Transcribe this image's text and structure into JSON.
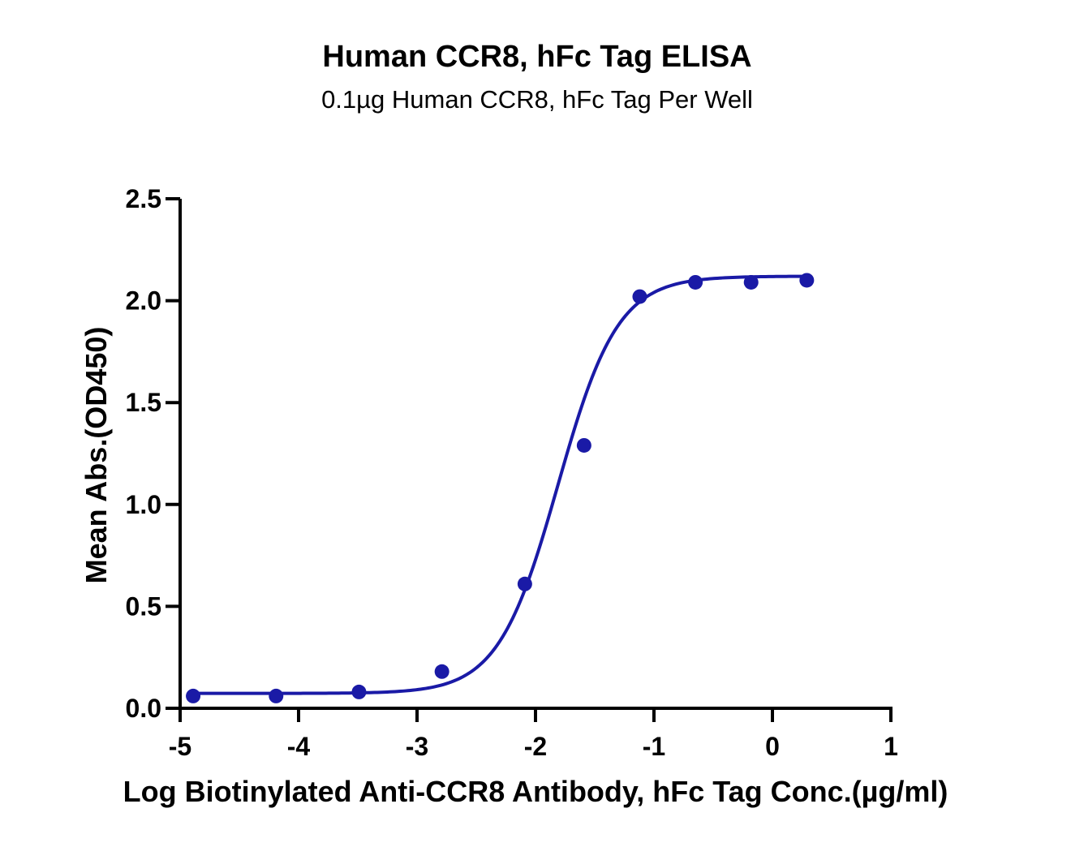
{
  "chart_data": {
    "type": "scatter",
    "title": "Human CCR8, hFc Tag ELISA",
    "subtitle": "0.1µg Human CCR8, hFc Tag Per Well",
    "xlabel": "Log Biotinylated Anti-CCR8 Antibody, hFc Tag Conc.(µg/ml)",
    "ylabel": "Mean Abs.(OD450)",
    "xlim": [
      -5,
      1
    ],
    "ylim": [
      0,
      2.5
    ],
    "x_ticks": [
      "-5",
      "-4",
      "-3",
      "-2",
      "-1",
      "0",
      "1"
    ],
    "y_ticks": [
      "0.0",
      "0.5",
      "1.0",
      "1.5",
      "2.0",
      "2.5"
    ],
    "grid": false,
    "color": "#1a1aa6",
    "series": [
      {
        "name": "Mean Abs.(OD450)",
        "x": [
          -4.89,
          -4.19,
          -3.49,
          -2.79,
          -2.09,
          -1.59,
          -1.12,
          -0.65,
          -0.18,
          0.29
        ],
        "y": [
          0.06,
          0.06,
          0.08,
          0.18,
          0.61,
          1.29,
          2.02,
          2.09,
          2.09,
          2.1
        ]
      }
    ],
    "fit": {
      "model": "4PL",
      "bottom": 0.073,
      "top": 2.12,
      "log_ec50": -1.81,
      "hill_slope": 1.72,
      "x_range": [
        -4.89,
        0.29
      ]
    }
  }
}
